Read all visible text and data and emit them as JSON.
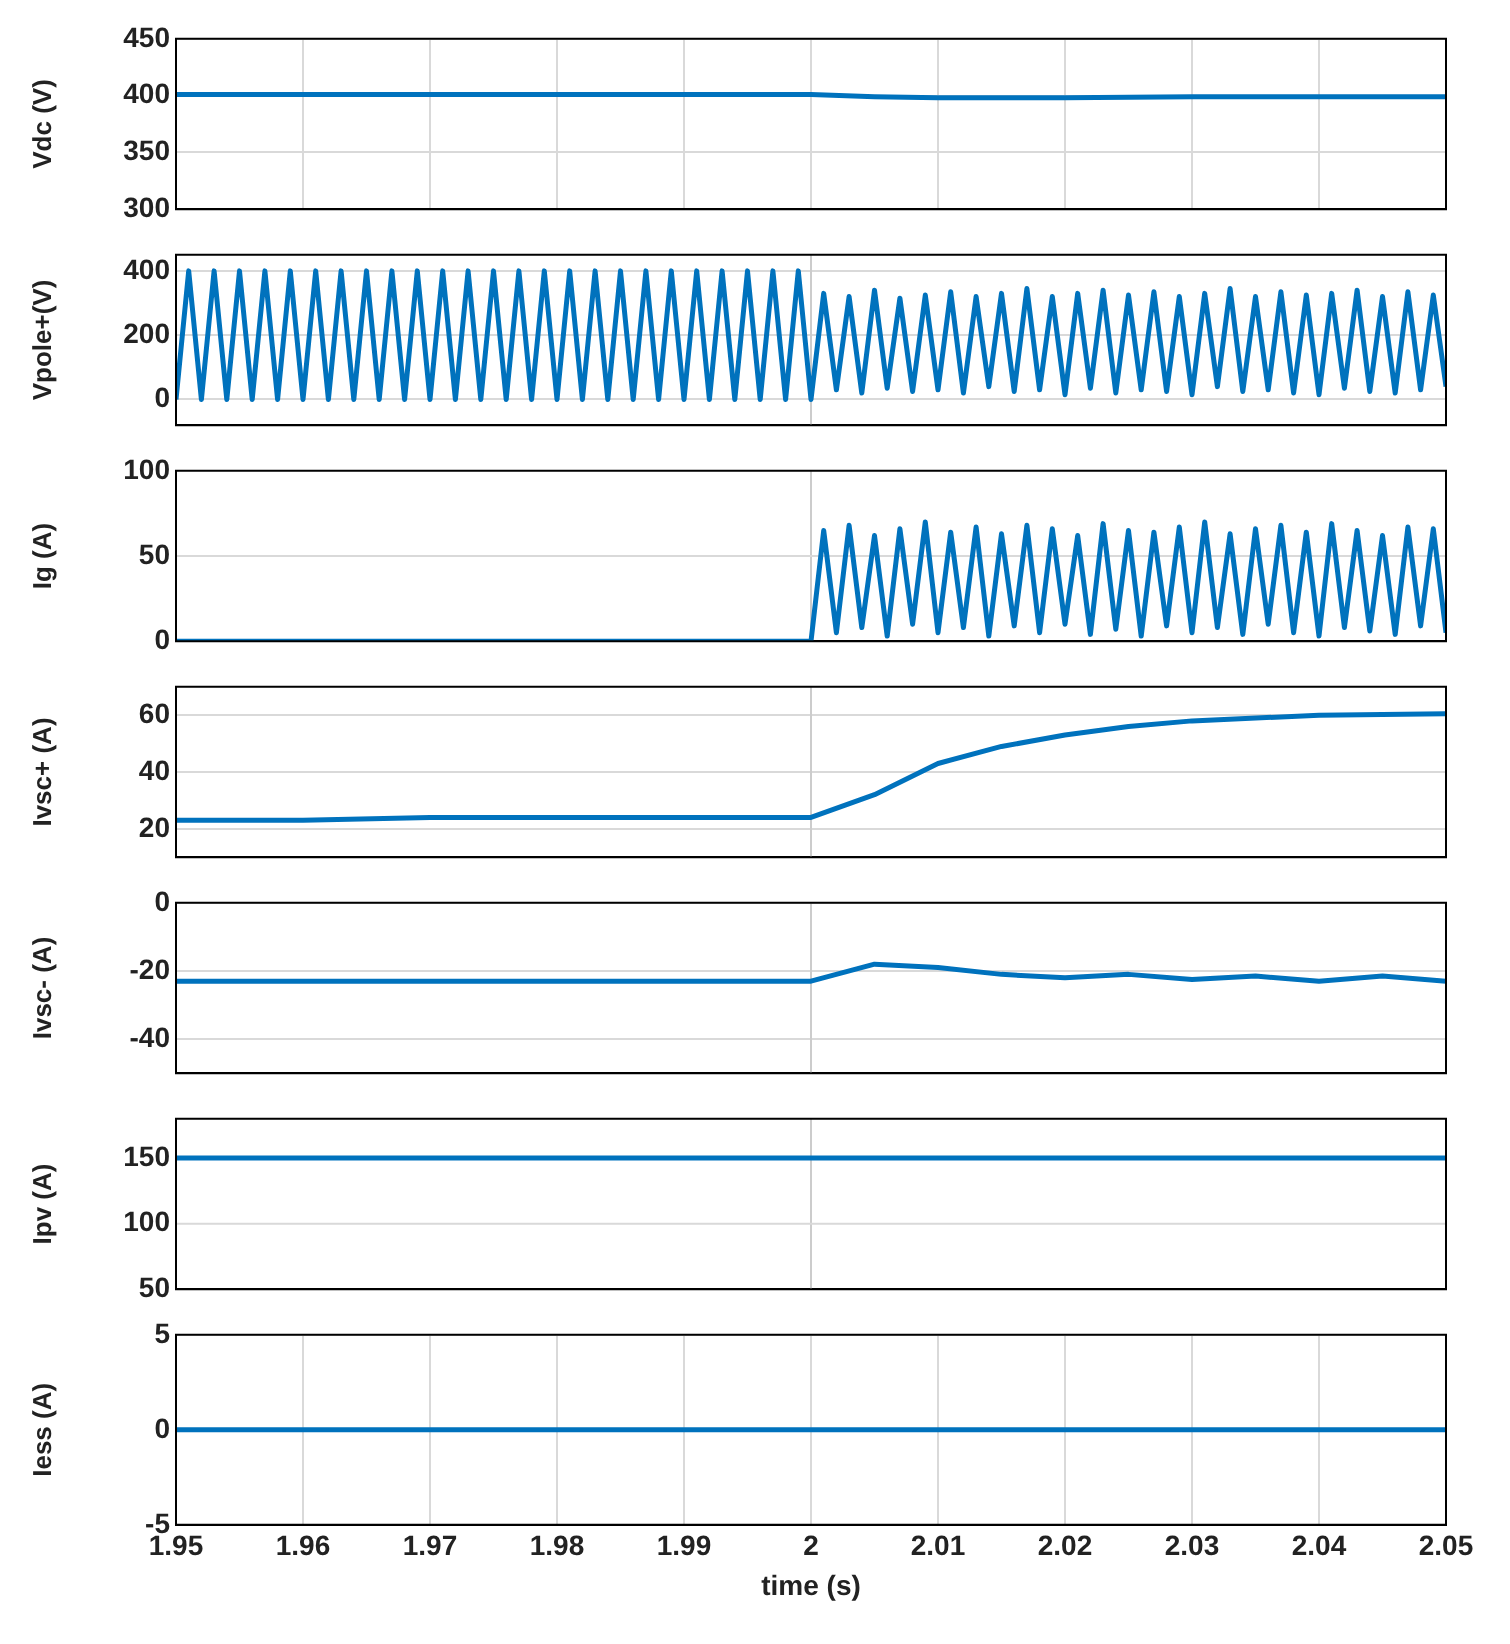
{
  "chart_data": [
    {
      "type": "line",
      "ylabel": "Vdc (V)",
      "xlim": [
        1.95,
        2.05
      ],
      "xticks": [
        1.95,
        1.96,
        1.97,
        1.98,
        1.99,
        2,
        2.01,
        2.02,
        2.03,
        2.04,
        2.05
      ],
      "ylim": [
        300,
        450
      ],
      "yticks": [
        300,
        350,
        400,
        450
      ],
      "grid": true,
      "tick_labels": "y",
      "series": [
        {
          "color": "#0072bd",
          "x": [
            1.95,
            1.96,
            1.97,
            1.98,
            1.99,
            2,
            2.005,
            2.01,
            2.02,
            2.03,
            2.04,
            2.05
          ],
          "values": [
            401,
            401,
            401,
            401,
            401,
            401,
            399,
            398,
            398,
            399,
            399,
            399
          ]
        }
      ]
    },
    {
      "type": "line",
      "ylabel": "Vpole+(V)",
      "xlim": [
        1.95,
        2.05
      ],
      "ylim": [
        -80,
        450
      ],
      "yticks": [
        0,
        200,
        400
      ],
      "grid": "y",
      "tick_labels": "y",
      "ref_lines": [
        {
          "axis": "x",
          "value": 2,
          "color": "#cccccc"
        }
      ],
      "series": [
        {
          "color": "#0072bd",
          "x": [
            1.95,
            1.951,
            1.952,
            1.953,
            1.954,
            1.955,
            1.956,
            1.957,
            1.958,
            1.959,
            1.96,
            1.961,
            1.962,
            1.963,
            1.964,
            1.965,
            1.966,
            1.967,
            1.968,
            1.969,
            1.97,
            1.971,
            1.972,
            1.973,
            1.974,
            1.975,
            1.976,
            1.977,
            1.978,
            1.979,
            1.98,
            1.981,
            1.982,
            1.983,
            1.984,
            1.985,
            1.986,
            1.987,
            1.988,
            1.989,
            1.99,
            1.991,
            1.992,
            1.993,
            1.994,
            1.995,
            1.996,
            1.997,
            1.998,
            1.999,
            2,
            2.001,
            2.002,
            2.003,
            2.004,
            2.005,
            2.006,
            2.007,
            2.008,
            2.009,
            2.01,
            2.011,
            2.012,
            2.013,
            2.014,
            2.015,
            2.016,
            2.017,
            2.018,
            2.019,
            2.02,
            2.021,
            2.022,
            2.023,
            2.024,
            2.025,
            2.026,
            2.027,
            2.028,
            2.029,
            2.03,
            2.031,
            2.032,
            2.033,
            2.034,
            2.035,
            2.036,
            2.037,
            2.038,
            2.039,
            2.04,
            2.041,
            2.042,
            2.043,
            2.044,
            2.045,
            2.046,
            2.047,
            2.048,
            2.049,
            2.05
          ],
          "values": [
            0,
            400,
            0,
            400,
            0,
            400,
            0,
            400,
            0,
            400,
            0,
            400,
            0,
            400,
            0,
            400,
            0,
            400,
            0,
            400,
            0,
            400,
            0,
            400,
            0,
            400,
            0,
            400,
            0,
            400,
            0,
            400,
            0,
            400,
            0,
            400,
            0,
            400,
            0,
            400,
            0,
            400,
            0,
            400,
            0,
            400,
            0,
            400,
            0,
            400,
            0,
            330,
            30,
            320,
            20,
            340,
            35,
            315,
            25,
            325,
            30,
            335,
            20,
            320,
            40,
            330,
            25,
            345,
            30,
            320,
            15,
            330,
            35,
            340,
            20,
            325,
            30,
            335,
            25,
            320,
            15,
            330,
            40,
            345,
            25,
            320,
            30,
            335,
            20,
            325,
            15,
            330,
            35,
            340,
            25,
            320,
            20,
            335,
            30,
            325,
            40
          ]
        }
      ]
    },
    {
      "type": "line",
      "ylabel": "Ig (A)",
      "xlim": [
        1.95,
        2.05
      ],
      "ylim": [
        0,
        100
      ],
      "yticks": [
        0,
        50,
        100
      ],
      "tick_labels": "y",
      "ref_lines": [
        {
          "axis": "x",
          "value": 2,
          "color": "#cccccc"
        },
        {
          "axis": "y",
          "value": 50,
          "color": "#d9d9d9"
        }
      ],
      "series": [
        {
          "color": "#0072bd",
          "x": [
            1.95,
            1.96,
            1.97,
            1.98,
            1.99,
            2,
            2.001,
            2.002,
            2.003,
            2.004,
            2.005,
            2.006,
            2.007,
            2.008,
            2.009,
            2.01,
            2.011,
            2.012,
            2.013,
            2.014,
            2.015,
            2.016,
            2.017,
            2.018,
            2.019,
            2.02,
            2.021,
            2.022,
            2.023,
            2.024,
            2.025,
            2.026,
            2.027,
            2.028,
            2.029,
            2.03,
            2.031,
            2.032,
            2.033,
            2.034,
            2.035,
            2.036,
            2.037,
            2.038,
            2.039,
            2.04,
            2.041,
            2.042,
            2.043,
            2.044,
            2.045,
            2.046,
            2.047,
            2.048,
            2.049,
            2.05
          ],
          "values": [
            0,
            0,
            0,
            0,
            0,
            0,
            65,
            5,
            68,
            8,
            62,
            3,
            66,
            10,
            70,
            5,
            64,
            8,
            67,
            3,
            63,
            9,
            68,
            5,
            66,
            10,
            62,
            4,
            69,
            7,
            65,
            3,
            64,
            9,
            67,
            5,
            70,
            8,
            63,
            4,
            66,
            10,
            68,
            5,
            64,
            3,
            69,
            8,
            65,
            6,
            62,
            4,
            67,
            9,
            66,
            5
          ]
        }
      ]
    },
    {
      "type": "line",
      "ylabel": "Ivsc+ (A)",
      "xlim": [
        1.95,
        2.05
      ],
      "ylim": [
        10,
        70
      ],
      "yticks": [
        20,
        40,
        60
      ],
      "grid": "y",
      "tick_labels": "y",
      "ref_lines": [
        {
          "axis": "x",
          "value": 2,
          "color": "#cccccc"
        }
      ],
      "series": [
        {
          "color": "#0072bd",
          "x": [
            1.95,
            1.96,
            1.97,
            1.98,
            1.99,
            2,
            2.005,
            2.01,
            2.015,
            2.02,
            2.025,
            2.03,
            2.04,
            2.05
          ],
          "values": [
            23,
            23,
            24,
            24,
            24,
            24,
            32,
            43,
            49,
            53,
            56,
            58,
            60,
            60.5
          ]
        }
      ]
    },
    {
      "type": "line",
      "ylabel": "Ivsc- (A)",
      "xlim": [
        1.95,
        2.05
      ],
      "ylim": [
        -50,
        0
      ],
      "yticks": [
        -40,
        -20,
        0
      ],
      "grid": "y",
      "tick_labels": "y",
      "ref_lines": [
        {
          "axis": "x",
          "value": 2,
          "color": "#cccccc"
        }
      ],
      "series": [
        {
          "color": "#0072bd",
          "x": [
            1.95,
            1.96,
            1.97,
            1.98,
            1.99,
            2,
            2.005,
            2.01,
            2.015,
            2.02,
            2.025,
            2.03,
            2.035,
            2.04,
            2.045,
            2.05
          ],
          "values": [
            -23,
            -23,
            -23,
            -23,
            -23,
            -23,
            -18,
            -19,
            -21,
            -22,
            -21,
            -22.5,
            -21.5,
            -23,
            -21.5,
            -23
          ]
        }
      ]
    },
    {
      "type": "line",
      "ylabel": "Ipv (A)",
      "xlim": [
        1.95,
        2.05
      ],
      "ylim": [
        50,
        180
      ],
      "yticks": [
        50,
        100,
        150
      ],
      "tick_labels": "y",
      "ref_lines": [
        {
          "axis": "x",
          "value": 2,
          "color": "#cccccc"
        },
        {
          "axis": "y",
          "value": 100,
          "color": "#d9d9d9"
        }
      ],
      "series": [
        {
          "color": "#0072bd",
          "x": [
            1.95,
            2.05
          ],
          "values": [
            150,
            150
          ]
        }
      ]
    },
    {
      "type": "line",
      "ylabel": "Iess (A)",
      "xlabel": "time (s)",
      "xlim": [
        1.95,
        2.05
      ],
      "xticks": [
        1.95,
        1.96,
        1.97,
        1.98,
        1.99,
        2,
        2.01,
        2.02,
        2.03,
        2.04,
        2.05
      ],
      "ylim": [
        -5,
        5
      ],
      "yticks": [
        -5,
        0,
        5
      ],
      "grid": true,
      "series": [
        {
          "color": "#0072bd",
          "x": [
            1.95,
            2.05
          ],
          "values": [
            0,
            0
          ]
        }
      ]
    }
  ]
}
